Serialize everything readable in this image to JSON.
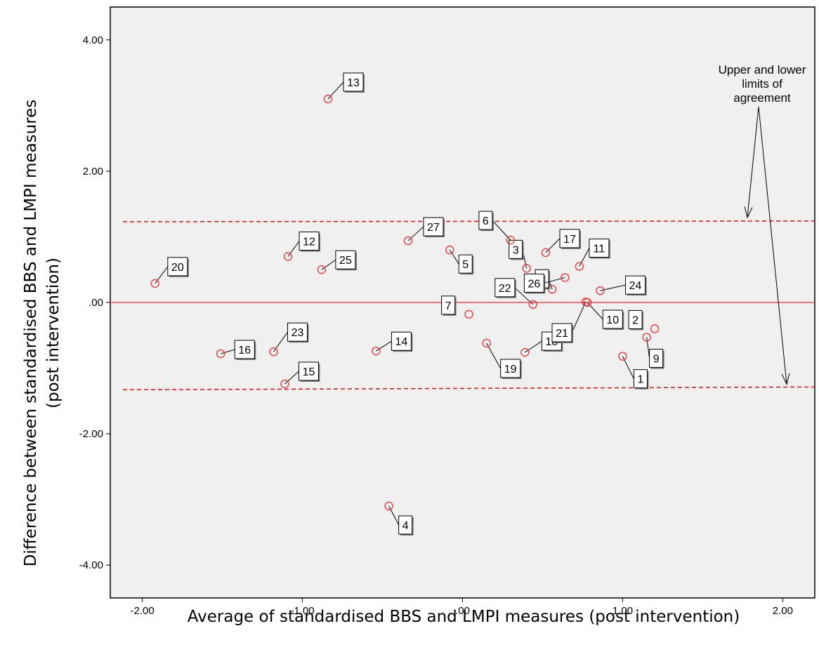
{
  "chart_data": {
    "type": "scatter",
    "xlabel": "Average of standardised BBS and LMPI measures (post intervention)",
    "ylabel": [
      "Difference between standardised BBS and LMPI measures",
      "(post intervention)"
    ],
    "xlim": [
      -2.2,
      2.2
    ],
    "ylim": [
      -4.5,
      4.5
    ],
    "xticks": [
      -2,
      -1,
      0,
      1,
      2
    ],
    "xtick_labels": [
      "-2.00",
      "-1.00",
      ".00",
      "1.00",
      "2.00"
    ],
    "yticks": [
      4,
      2,
      0,
      -2,
      -4
    ],
    "ytick_labels": [
      "4.00",
      "2.00",
      ".00",
      "-2.00",
      "-4.00"
    ],
    "mean_line": 0.0,
    "upper_limit": 1.23,
    "lower_limit": -1.33,
    "annotation": [
      "Upper and lower",
      "limits of",
      "agreement"
    ],
    "grid": false,
    "colors": {
      "point": "#e8474d",
      "mean": "#f04a50",
      "limits": "#e01010",
      "plot_bg": "#f0f0f0"
    },
    "points": [
      {
        "id": "1",
        "x": 1.0,
        "y": -0.82
      },
      {
        "id": "2",
        "x": 1.2,
        "y": -0.4
      },
      {
        "id": "3",
        "x": 0.4,
        "y": 0.52
      },
      {
        "id": "4",
        "x": -0.46,
        "y": -3.1
      },
      {
        "id": "5",
        "x": -0.08,
        "y": 0.8
      },
      {
        "id": "6",
        "x": 0.3,
        "y": 0.95
      },
      {
        "id": "7",
        "x": 0.04,
        "y": -0.18
      },
      {
        "id": "8",
        "x": 0.56,
        "y": 0.2
      },
      {
        "id": "9",
        "x": 1.15,
        "y": -0.53
      },
      {
        "id": "10",
        "x": 0.78,
        "y": 0.0
      },
      {
        "id": "11",
        "x": 0.73,
        "y": 0.55
      },
      {
        "id": "12",
        "x": -1.09,
        "y": 0.7
      },
      {
        "id": "13",
        "x": -0.84,
        "y": 3.1
      },
      {
        "id": "14",
        "x": -0.54,
        "y": -0.74
      },
      {
        "id": "15",
        "x": -1.11,
        "y": -1.24
      },
      {
        "id": "16",
        "x": -1.51,
        "y": -0.78
      },
      {
        "id": "17",
        "x": 0.52,
        "y": 0.76
      },
      {
        "id": "18",
        "x": 0.39,
        "y": -0.76
      },
      {
        "id": "19",
        "x": 0.15,
        "y": -0.62
      },
      {
        "id": "20",
        "x": -1.92,
        "y": 0.29
      },
      {
        "id": "21",
        "x": 0.77,
        "y": 0.01
      },
      {
        "id": "22",
        "x": 0.44,
        "y": -0.03
      },
      {
        "id": "23",
        "x": -1.18,
        "y": -0.75
      },
      {
        "id": "24",
        "x": 0.86,
        "y": 0.18
      },
      {
        "id": "25",
        "x": -0.88,
        "y": 0.5
      },
      {
        "id": "26",
        "x": 0.64,
        "y": 0.38
      },
      {
        "id": "27",
        "x": -0.34,
        "y": 0.94
      }
    ]
  }
}
